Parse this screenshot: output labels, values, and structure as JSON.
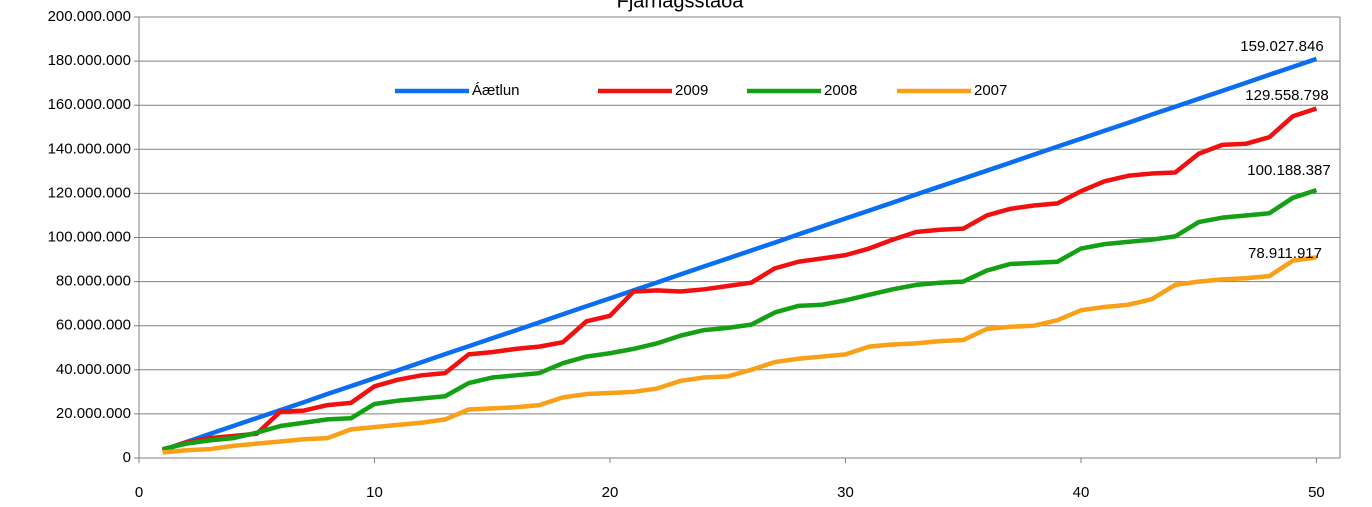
{
  "chart_data": {
    "type": "line",
    "title": "Fjárhagsstaða",
    "x": [
      1,
      2,
      3,
      4,
      5,
      6,
      7,
      8,
      9,
      10,
      11,
      12,
      13,
      14,
      15,
      16,
      17,
      18,
      19,
      20,
      21,
      22,
      23,
      24,
      25,
      26,
      27,
      28,
      29,
      30,
      31,
      32,
      33,
      34,
      35,
      36,
      37,
      38,
      39,
      40,
      41,
      42,
      43,
      44,
      45,
      46,
      47,
      48,
      49,
      50
    ],
    "series": [
      {
        "name": "Áætlun",
        "color": "#0a6ef0",
        "values": [
          3600000.0,
          7200000.0,
          10900000.0,
          14500000.0,
          18100000.0,
          21700000.0,
          25300000.0,
          29000000.0,
          32600000.0,
          36200000.0,
          39800000.0,
          43400000.0,
          47100000.0,
          50700000.0,
          54300000.0,
          57900000.0,
          61500000.0,
          65200000.0,
          68800000.0,
          72400000.0,
          76000000.0,
          79600000.0,
          83300000.0,
          86900000.0,
          90500000.0,
          94100000.0,
          97700000.0,
          101400000.0,
          105000000.0,
          108600000.0,
          112200000.0,
          115800000.0,
          119500000.0,
          123100000.0,
          126700000.0,
          130300000.0,
          133900000.0,
          137600000.0,
          141200000.0,
          144800000.0,
          148400000.0,
          152000000.0,
          155700000.0,
          159300000.0,
          162900000.0,
          166500000.0,
          170100000.0,
          173800000.0,
          177400000.0,
          181000000.0
        ]
      },
      {
        "name": "2009",
        "color": "#f01010",
        "values": [
          3500000.0,
          7000000.0,
          9000000.0,
          10000000.0,
          11000000.0,
          21000000.0,
          21500000.0,
          24000000.0,
          25000000.0,
          32500000.0,
          35500000.0,
          37500000.0,
          38500000.0,
          47000000.0,
          48000000.0,
          49500000.0,
          50500000.0,
          52500000.0,
          62000000.0,
          64500000.0,
          75500000.0,
          76000000.0,
          75500000.0,
          76500000.0,
          78000000.0,
          79500000.0,
          86000000.0,
          89000000.0,
          90500000.0,
          92000000.0,
          95000000.0,
          99000000.0,
          102500000.0,
          103500000.0,
          104000000.0,
          110000000.0,
          113000000.0,
          114500000.0,
          115500000.0,
          121000000.0,
          125500000.0,
          128000000.0,
          129000000.0,
          129500000.0,
          138000000.0,
          142000000.0,
          142500000.0,
          145500000.0,
          155000000.0,
          158500000.0
        ]
      },
      {
        "name": "2008",
        "color": "#14a014",
        "values": [
          4000000.0,
          6500000.0,
          8000000.0,
          9000000.0,
          11500000.0,
          14500000.0,
          16000000.0,
          17500000.0,
          18000000.0,
          24500000.0,
          26000000.0,
          27000000.0,
          28000000.0,
          34000000.0,
          36500000.0,
          37500000.0,
          38500000.0,
          43000000.0,
          46000000.0,
          47500000.0,
          49500000.0,
          52000000.0,
          55500000.0,
          58000000.0,
          59000000.0,
          60500000.0,
          66000000.0,
          69000000.0,
          69500000.0,
          71500000.0,
          74000000.0,
          76500000.0,
          78500000.0,
          79500000.0,
          80000000.0,
          85000000.0,
          88000000.0,
          88500000.0,
          89000000.0,
          95000000.0,
          97000000.0,
          98000000.0,
          99000000.0,
          100500000.0,
          107000000.0,
          109000000.0,
          110000000.0,
          111000000.0,
          118000000.0,
          121500000.0
        ]
      },
      {
        "name": "2007",
        "color": "#f8a018",
        "values": [
          2500000.0,
          3500000.0,
          4000000.0,
          5500000.0,
          6500000.0,
          7500000.0,
          8500000.0,
          9000000.0,
          13000000.0,
          14000000.0,
          15000000.0,
          16000000.0,
          17500000.0,
          22000000.0,
          22500000.0,
          23000000.0,
          24000000.0,
          27500000.0,
          29000000.0,
          29500000.0,
          30000000.0,
          31500000.0,
          35000000.0,
          36500000.0,
          37000000.0,
          40000000.0,
          43500000.0,
          45000000.0,
          46000000.0,
          47000000.0,
          50500000.0,
          51500000.0,
          52000000.0,
          53000000.0,
          53500000.0,
          58500000.0,
          59500000.0,
          60000000.0,
          62500000.0,
          67000000.0,
          68500000.0,
          69500000.0,
          72000000.0,
          78500000.0,
          80000000.0,
          81000000.0,
          81500000.0,
          82500000.0,
          89500000.0,
          91000000.0
        ]
      }
    ],
    "annotations": [
      "159.027.846",
      "129.558.798",
      "100.188.387",
      "78.911.917"
    ],
    "xlim": [
      0,
      51
    ],
    "xticks": [
      0,
      10,
      20,
      30,
      40,
      50
    ],
    "ylim": [
      0,
      200000000
    ],
    "yticks": [
      0,
      {
        "value": 20000000,
        "label": "20.000.000"
      },
      {
        "value": 40000000,
        "label": "40.000.000"
      },
      {
        "value": 60000000,
        "label": "60.000.000"
      },
      {
        "value": 80000000,
        "label": "80.000.000"
      },
      {
        "value": 100000000,
        "label": "100.000.000"
      },
      {
        "value": 120000000,
        "label": "120.000.000"
      },
      {
        "value": 140000000,
        "label": "140.000.000"
      },
      {
        "value": 160000000,
        "label": "160.000.000"
      },
      {
        "value": 180000000,
        "label": "180.000.000"
      },
      {
        "value": 200000000,
        "label": "200.000.000"
      }
    ],
    "grid": true,
    "legend": "top"
  }
}
